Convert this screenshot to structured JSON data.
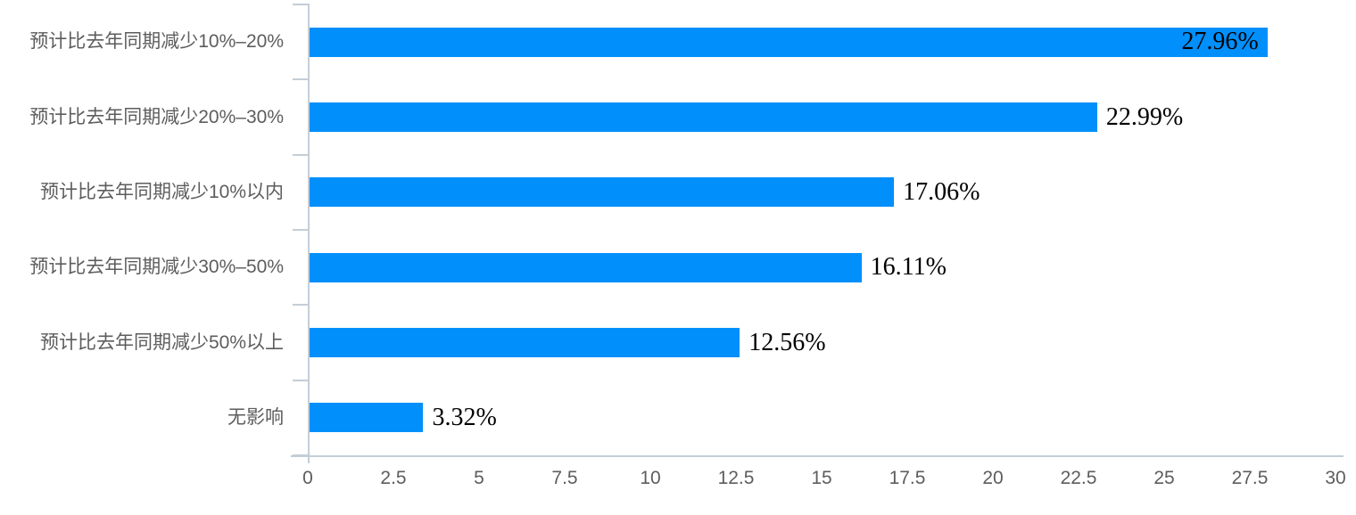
{
  "chart_data": {
    "type": "bar",
    "orientation": "horizontal",
    "title": "",
    "xlabel": "",
    "ylabel": "",
    "categories": [
      "预计比去年同期减少10%–20%",
      "预计比去年同期减少20%–30%",
      "预计比去年同期减少10%以内",
      "预计比去年同期减少30%–50%",
      "预计比去年同期减少50%以上",
      "无影响"
    ],
    "values": [
      27.96,
      22.99,
      17.06,
      16.11,
      12.56,
      3.32
    ],
    "value_labels": [
      "27.96%",
      "22.99%",
      "17.06%",
      "16.11%",
      "12.56%",
      "3.32%"
    ],
    "xlim": [
      0,
      30
    ],
    "x_ticks": [
      "0",
      "2.5",
      "5",
      "7.5",
      "10",
      "12.5",
      "15",
      "17.5",
      "20",
      "22.5",
      "25",
      "27.5",
      "30"
    ],
    "grid": false,
    "legend": false,
    "colors": {
      "bar": "#008FFB",
      "axis_line": "#c4ced8",
      "label_text": "#5d5d5d",
      "data_label_text": "#000000",
      "background": "#ffffff"
    }
  }
}
